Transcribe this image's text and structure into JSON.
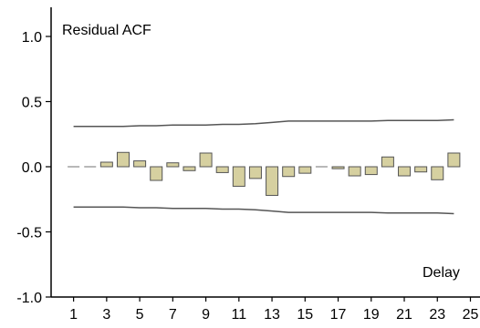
{
  "chart_data": {
    "type": "bar",
    "title": "Residual ACF",
    "xlabel": "Delay",
    "ylabel": "",
    "ylim": [
      -1.0,
      1.0
    ],
    "xlim": [
      0,
      25.5
    ],
    "y_ticks": [
      1.0,
      0.5,
      0.0,
      -0.5,
      -1.0
    ],
    "y_tick_labels": [
      "1.0",
      "0.5",
      "0.0",
      "-0.5",
      "-1.0"
    ],
    "x_tick_labels": [
      "1",
      "3",
      "5",
      "7",
      "9",
      "11",
      "13",
      "15",
      "17",
      "19",
      "21",
      "23",
      "25"
    ],
    "x_ticks": [
      1,
      3,
      5,
      7,
      9,
      11,
      13,
      15,
      17,
      19,
      21,
      23,
      25
    ],
    "grid": false,
    "bar_color": "#d6d0a0",
    "bar_edge_color": "#555555",
    "band_color": "#555555",
    "lags": [
      1,
      2,
      3,
      4,
      5,
      6,
      7,
      8,
      9,
      10,
      11,
      12,
      13,
      14,
      15,
      16,
      17,
      18,
      19,
      20,
      21,
      22,
      23,
      24
    ],
    "values": [
      0.0,
      0.0,
      0.035,
      0.11,
      0.045,
      -0.105,
      0.03,
      -0.03,
      0.105,
      -0.045,
      -0.15,
      -0.09,
      -0.22,
      -0.075,
      -0.05,
      0.0,
      -0.015,
      -0.07,
      -0.06,
      0.075,
      -0.07,
      -0.04,
      -0.1,
      0.105
    ],
    "upper_band": [
      0.31,
      0.31,
      0.31,
      0.31,
      0.315,
      0.315,
      0.32,
      0.32,
      0.32,
      0.325,
      0.325,
      0.33,
      0.34,
      0.35,
      0.35,
      0.35,
      0.35,
      0.35,
      0.35,
      0.355,
      0.355,
      0.355,
      0.355,
      0.36
    ],
    "lower_band": [
      -0.31,
      -0.31,
      -0.31,
      -0.31,
      -0.315,
      -0.315,
      -0.32,
      -0.32,
      -0.32,
      -0.325,
      -0.325,
      -0.33,
      -0.34,
      -0.35,
      -0.35,
      -0.35,
      -0.35,
      -0.35,
      -0.35,
      -0.355,
      -0.355,
      -0.355,
      -0.355,
      -0.36
    ]
  }
}
